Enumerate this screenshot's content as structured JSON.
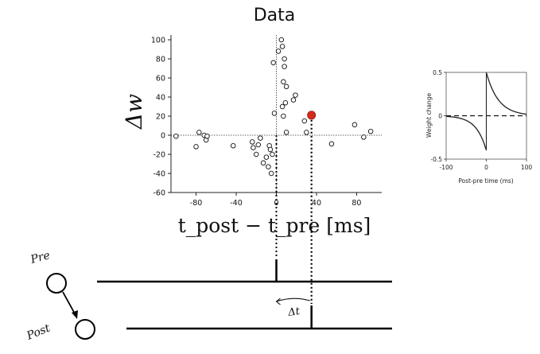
{
  "title": "Data",
  "chart_data": [
    {
      "type": "scatter",
      "title": "Data",
      "xlabel": "t_post − t_pre  [ms]",
      "ylabel": "Δw",
      "xlim": [
        -105,
        105
      ],
      "ylim": [
        -60,
        105
      ],
      "xticks": [
        -80,
        -40,
        0,
        40,
        80
      ],
      "yticks": [
        -60,
        -40,
        -20,
        0,
        20,
        40,
        60,
        80,
        100
      ],
      "series": [
        {
          "points": [
            {
              "x": -100,
              "y": -1
            },
            {
              "x": -80,
              "y": -12
            },
            {
              "x": -77,
              "y": 3
            },
            {
              "x": -72,
              "y": 0
            },
            {
              "x": -70,
              "y": -5
            },
            {
              "x": -69,
              "y": -1
            },
            {
              "x": -43,
              "y": -11
            },
            {
              "x": -24,
              "y": -7
            },
            {
              "x": -23,
              "y": -13
            },
            {
              "x": -20,
              "y": -20
            },
            {
              "x": -18,
              "y": -10
            },
            {
              "x": -16,
              "y": -3
            },
            {
              "x": -13,
              "y": -29
            },
            {
              "x": -10,
              "y": -23
            },
            {
              "x": -8,
              "y": -33
            },
            {
              "x": -7,
              "y": -11
            },
            {
              "x": -6,
              "y": -15
            },
            {
              "x": -5,
              "y": -40
            },
            {
              "x": -4,
              "y": -20
            },
            {
              "x": -3,
              "y": 76
            },
            {
              "x": -2,
              "y": 23
            },
            {
              "x": 2,
              "y": 88
            },
            {
              "x": 5,
              "y": 100
            },
            {
              "x": 6,
              "y": 93
            },
            {
              "x": 6,
              "y": 30
            },
            {
              "x": 7,
              "y": 56
            },
            {
              "x": 7,
              "y": 20
            },
            {
              "x": 8,
              "y": 72
            },
            {
              "x": 8,
              "y": 80
            },
            {
              "x": 9,
              "y": 34
            },
            {
              "x": 10,
              "y": 3
            },
            {
              "x": 10,
              "y": 51
            },
            {
              "x": 17,
              "y": 37
            },
            {
              "x": 19,
              "y": 42
            },
            {
              "x": 28,
              "y": 15
            },
            {
              "x": 30,
              "y": 3
            },
            {
              "x": 55,
              "y": -9
            },
            {
              "x": 78,
              "y": 11
            },
            {
              "x": 87,
              "y": -2
            },
            {
              "x": 94,
              "y": 4
            }
          ]
        }
      ],
      "highlight": {
        "x": 35,
        "y": 21,
        "color": "#d42a1a"
      },
      "grid": false
    },
    {
      "type": "line",
      "xlabel": "Post-pre time (ms)",
      "ylabel": "Weight change",
      "xlim": [
        -100,
        100
      ],
      "ylim": [
        -0.5,
        0.5
      ],
      "xticks": [
        -100,
        0,
        100
      ],
      "yticks": [
        -0.5,
        0,
        0.5
      ],
      "series": [
        {
          "x": [
            -100,
            -80,
            -60,
            -40,
            -20,
            -10,
            -1
          ],
          "y": [
            -0.009,
            -0.018,
            -0.037,
            -0.081,
            -0.177,
            -0.262,
            -0.376
          ]
        },
        {
          "x": [
            1,
            10,
            20,
            40,
            60,
            80,
            100
          ],
          "y": [
            0.478,
            0.352,
            0.254,
            0.132,
            0.069,
            0.036,
            0.018
          ]
        }
      ]
    }
  ],
  "spikes": {
    "pre_label": "Pre",
    "post_label": "Post",
    "delta_label": "Δt",
    "pre_spike_time_ms": 0,
    "post_spike_time_ms": 35
  },
  "colors": {
    "highlight": "#d42a1a",
    "ink": "#111111"
  }
}
